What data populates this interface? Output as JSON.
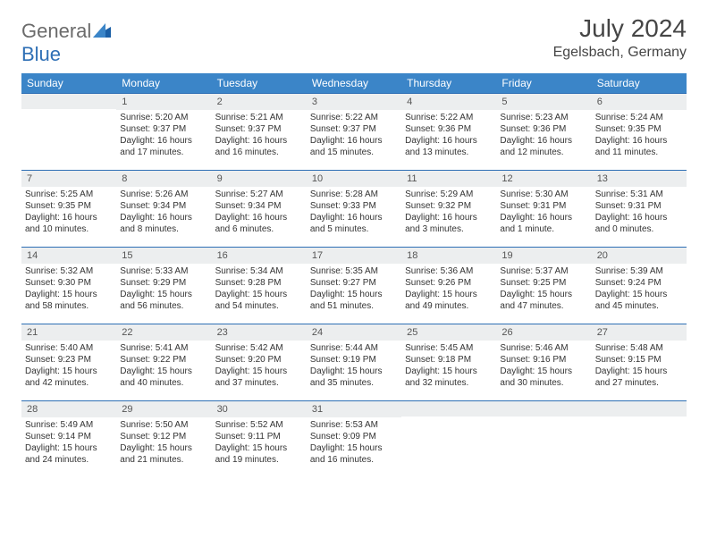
{
  "brand": {
    "part1": "General",
    "part2": "Blue"
  },
  "title": "July 2024",
  "location": "Egelsbach, Germany",
  "colors": {
    "header_bg": "#3b85c8",
    "header_text": "#ffffff",
    "border": "#2e6fb5",
    "daynum_bg": "#eceeef",
    "text": "#333333",
    "logo_gray": "#6b6b6b",
    "logo_blue": "#2e6fb5"
  },
  "weekdays": [
    "Sunday",
    "Monday",
    "Tuesday",
    "Wednesday",
    "Thursday",
    "Friday",
    "Saturday"
  ],
  "weeks": [
    [
      {
        "n": "",
        "sun": "",
        "set": "",
        "day": ""
      },
      {
        "n": "1",
        "sun": "Sunrise: 5:20 AM",
        "set": "Sunset: 9:37 PM",
        "day": "Daylight: 16 hours and 17 minutes."
      },
      {
        "n": "2",
        "sun": "Sunrise: 5:21 AM",
        "set": "Sunset: 9:37 PM",
        "day": "Daylight: 16 hours and 16 minutes."
      },
      {
        "n": "3",
        "sun": "Sunrise: 5:22 AM",
        "set": "Sunset: 9:37 PM",
        "day": "Daylight: 16 hours and 15 minutes."
      },
      {
        "n": "4",
        "sun": "Sunrise: 5:22 AM",
        "set": "Sunset: 9:36 PM",
        "day": "Daylight: 16 hours and 13 minutes."
      },
      {
        "n": "5",
        "sun": "Sunrise: 5:23 AM",
        "set": "Sunset: 9:36 PM",
        "day": "Daylight: 16 hours and 12 minutes."
      },
      {
        "n": "6",
        "sun": "Sunrise: 5:24 AM",
        "set": "Sunset: 9:35 PM",
        "day": "Daylight: 16 hours and 11 minutes."
      }
    ],
    [
      {
        "n": "7",
        "sun": "Sunrise: 5:25 AM",
        "set": "Sunset: 9:35 PM",
        "day": "Daylight: 16 hours and 10 minutes."
      },
      {
        "n": "8",
        "sun": "Sunrise: 5:26 AM",
        "set": "Sunset: 9:34 PM",
        "day": "Daylight: 16 hours and 8 minutes."
      },
      {
        "n": "9",
        "sun": "Sunrise: 5:27 AM",
        "set": "Sunset: 9:34 PM",
        "day": "Daylight: 16 hours and 6 minutes."
      },
      {
        "n": "10",
        "sun": "Sunrise: 5:28 AM",
        "set": "Sunset: 9:33 PM",
        "day": "Daylight: 16 hours and 5 minutes."
      },
      {
        "n": "11",
        "sun": "Sunrise: 5:29 AM",
        "set": "Sunset: 9:32 PM",
        "day": "Daylight: 16 hours and 3 minutes."
      },
      {
        "n": "12",
        "sun": "Sunrise: 5:30 AM",
        "set": "Sunset: 9:31 PM",
        "day": "Daylight: 16 hours and 1 minute."
      },
      {
        "n": "13",
        "sun": "Sunrise: 5:31 AM",
        "set": "Sunset: 9:31 PM",
        "day": "Daylight: 16 hours and 0 minutes."
      }
    ],
    [
      {
        "n": "14",
        "sun": "Sunrise: 5:32 AM",
        "set": "Sunset: 9:30 PM",
        "day": "Daylight: 15 hours and 58 minutes."
      },
      {
        "n": "15",
        "sun": "Sunrise: 5:33 AM",
        "set": "Sunset: 9:29 PM",
        "day": "Daylight: 15 hours and 56 minutes."
      },
      {
        "n": "16",
        "sun": "Sunrise: 5:34 AM",
        "set": "Sunset: 9:28 PM",
        "day": "Daylight: 15 hours and 54 minutes."
      },
      {
        "n": "17",
        "sun": "Sunrise: 5:35 AM",
        "set": "Sunset: 9:27 PM",
        "day": "Daylight: 15 hours and 51 minutes."
      },
      {
        "n": "18",
        "sun": "Sunrise: 5:36 AM",
        "set": "Sunset: 9:26 PM",
        "day": "Daylight: 15 hours and 49 minutes."
      },
      {
        "n": "19",
        "sun": "Sunrise: 5:37 AM",
        "set": "Sunset: 9:25 PM",
        "day": "Daylight: 15 hours and 47 minutes."
      },
      {
        "n": "20",
        "sun": "Sunrise: 5:39 AM",
        "set": "Sunset: 9:24 PM",
        "day": "Daylight: 15 hours and 45 minutes."
      }
    ],
    [
      {
        "n": "21",
        "sun": "Sunrise: 5:40 AM",
        "set": "Sunset: 9:23 PM",
        "day": "Daylight: 15 hours and 42 minutes."
      },
      {
        "n": "22",
        "sun": "Sunrise: 5:41 AM",
        "set": "Sunset: 9:22 PM",
        "day": "Daylight: 15 hours and 40 minutes."
      },
      {
        "n": "23",
        "sun": "Sunrise: 5:42 AM",
        "set": "Sunset: 9:20 PM",
        "day": "Daylight: 15 hours and 37 minutes."
      },
      {
        "n": "24",
        "sun": "Sunrise: 5:44 AM",
        "set": "Sunset: 9:19 PM",
        "day": "Daylight: 15 hours and 35 minutes."
      },
      {
        "n": "25",
        "sun": "Sunrise: 5:45 AM",
        "set": "Sunset: 9:18 PM",
        "day": "Daylight: 15 hours and 32 minutes."
      },
      {
        "n": "26",
        "sun": "Sunrise: 5:46 AM",
        "set": "Sunset: 9:16 PM",
        "day": "Daylight: 15 hours and 30 minutes."
      },
      {
        "n": "27",
        "sun": "Sunrise: 5:48 AM",
        "set": "Sunset: 9:15 PM",
        "day": "Daylight: 15 hours and 27 minutes."
      }
    ],
    [
      {
        "n": "28",
        "sun": "Sunrise: 5:49 AM",
        "set": "Sunset: 9:14 PM",
        "day": "Daylight: 15 hours and 24 minutes."
      },
      {
        "n": "29",
        "sun": "Sunrise: 5:50 AM",
        "set": "Sunset: 9:12 PM",
        "day": "Daylight: 15 hours and 21 minutes."
      },
      {
        "n": "30",
        "sun": "Sunrise: 5:52 AM",
        "set": "Sunset: 9:11 PM",
        "day": "Daylight: 15 hours and 19 minutes."
      },
      {
        "n": "31",
        "sun": "Sunrise: 5:53 AM",
        "set": "Sunset: 9:09 PM",
        "day": "Daylight: 15 hours and 16 minutes."
      },
      {
        "n": "",
        "sun": "",
        "set": "",
        "day": ""
      },
      {
        "n": "",
        "sun": "",
        "set": "",
        "day": ""
      },
      {
        "n": "",
        "sun": "",
        "set": "",
        "day": ""
      }
    ]
  ]
}
